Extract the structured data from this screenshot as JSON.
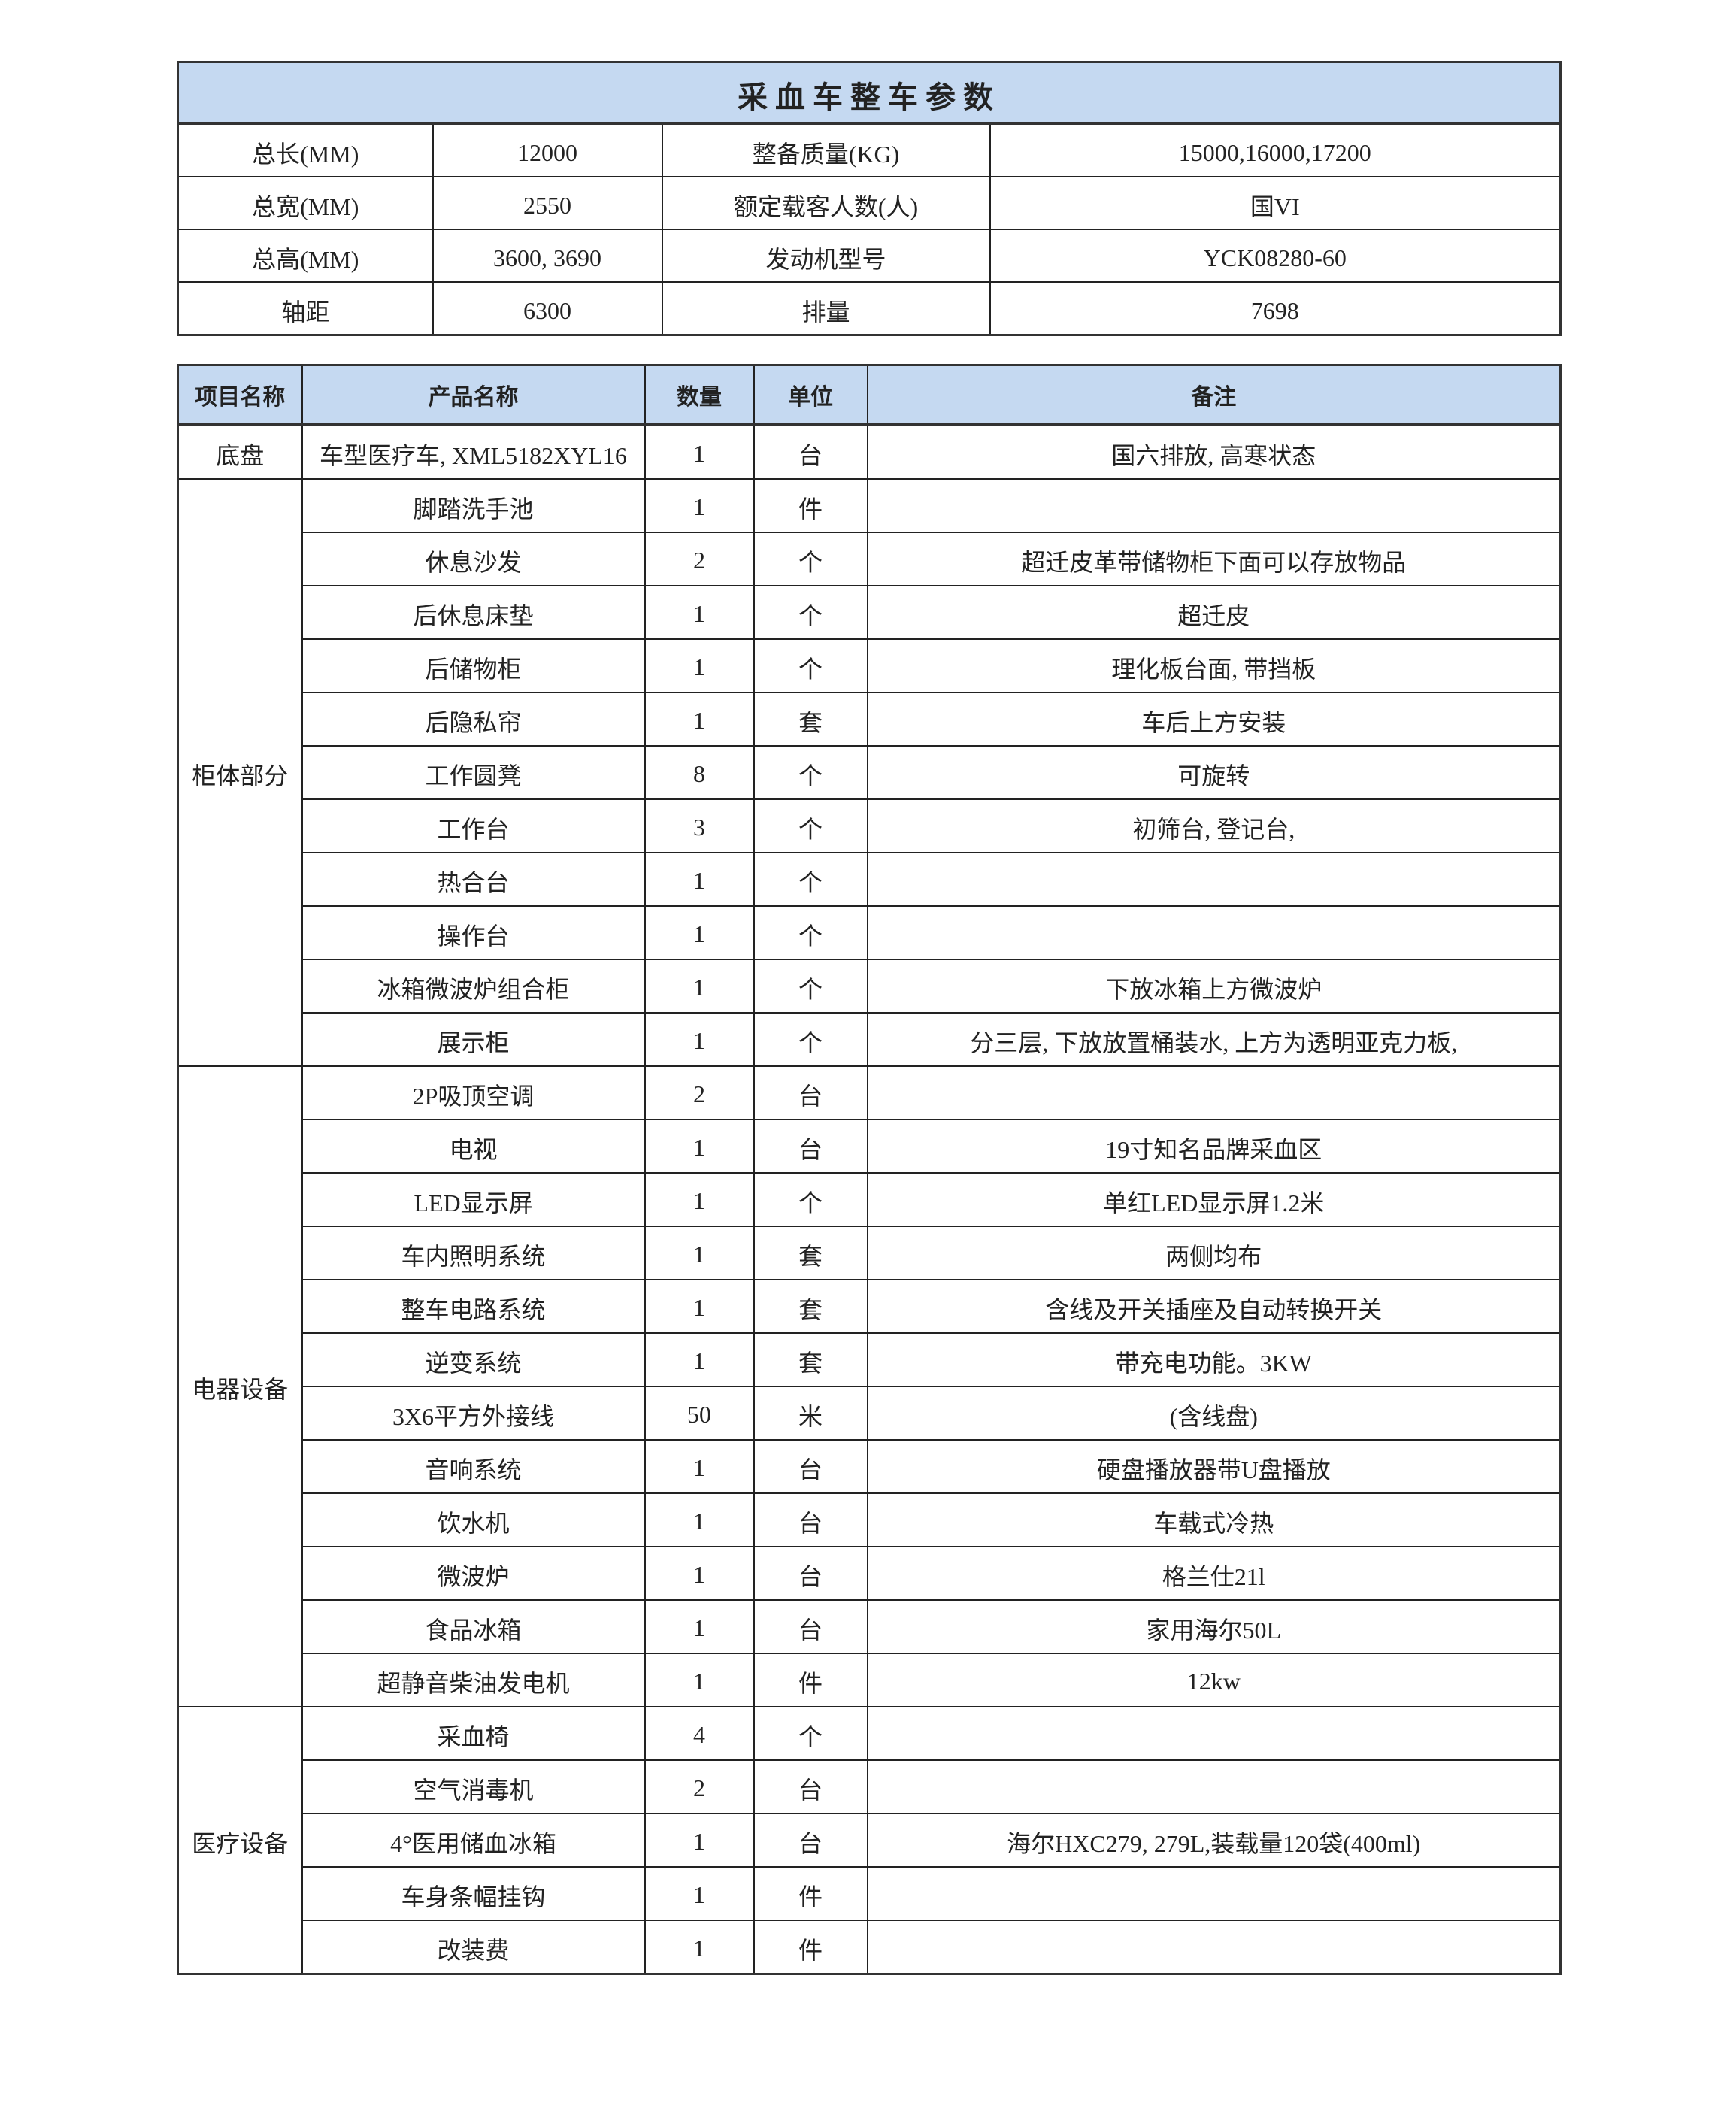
{
  "spec": {
    "title": "采血车整车参数",
    "rows": [
      [
        "总长(MM)",
        "12000",
        "整备质量(KG)",
        "15000,16000,17200"
      ],
      [
        "总宽(MM)",
        "2550",
        "额定载客人数(人)",
        "国VI"
      ],
      [
        "总高(MM)",
        "3600, 3690",
        "发动机型号",
        "YCK08280-60"
      ],
      [
        "轴距",
        "6300",
        "排量",
        "7698"
      ]
    ]
  },
  "items": {
    "headers": [
      "项目名称",
      "产品名称",
      "数量",
      "单位",
      "备注"
    ],
    "groups": [
      {
        "name": "底盘",
        "rows": [
          [
            "车型医疗车, XML5182XYL16",
            "1",
            "台",
            "国六排放, 高寒状态"
          ]
        ]
      },
      {
        "name": "柜体部分",
        "rows": [
          [
            "脚踏洗手池",
            "1",
            "件",
            ""
          ],
          [
            "休息沙发",
            "2",
            "个",
            "超迁皮革带储物柜下面可以存放物品"
          ],
          [
            "后休息床垫",
            "1",
            "个",
            "超迁皮"
          ],
          [
            "后储物柜",
            "1",
            "个",
            "理化板台面, 带挡板"
          ],
          [
            "后隐私帘",
            "1",
            "套",
            "车后上方安装"
          ],
          [
            "工作圆凳",
            "8",
            "个",
            "可旋转"
          ],
          [
            "工作台",
            "3",
            "个",
            "初筛台, 登记台,"
          ],
          [
            "热合台",
            "1",
            "个",
            ""
          ],
          [
            "操作台",
            "1",
            "个",
            ""
          ],
          [
            "冰箱微波炉组合柜",
            "1",
            "个",
            "下放冰箱上方微波炉"
          ],
          [
            "展示柜",
            "1",
            "个",
            "分三层, 下放放置桶装水, 上方为透明亚克力板,"
          ]
        ]
      },
      {
        "name": "电器设备",
        "rows": [
          [
            "2P吸顶空调",
            "2",
            "台",
            ""
          ],
          [
            "电视",
            "1",
            "台",
            "19寸知名品牌采血区"
          ],
          [
            "LED显示屏",
            "1",
            "个",
            "单红LED显示屏1.2米"
          ],
          [
            "车内照明系统",
            "1",
            "套",
            "两侧均布"
          ],
          [
            "整车电路系统",
            "1",
            "套",
            "含线及开关插座及自动转换开关"
          ],
          [
            "逆变系统",
            "1",
            "套",
            "带充电功能。3KW"
          ],
          [
            "3X6平方外接线",
            "50",
            "米",
            "(含线盘)"
          ],
          [
            "音响系统",
            "1",
            "台",
            "硬盘播放器带U盘播放"
          ],
          [
            "饮水机",
            "1",
            "台",
            "车载式冷热"
          ],
          [
            "微波炉",
            "1",
            "台",
            "格兰仕21l"
          ],
          [
            "食品冰箱",
            "1",
            "台",
            "家用海尔50L"
          ],
          [
            "超静音柴油发电机",
            "1",
            "件",
            "12kw"
          ]
        ]
      },
      {
        "name": "医疗设备",
        "rows": [
          [
            "采血椅",
            "4",
            "个",
            ""
          ],
          [
            "空气消毒机",
            "2",
            "台",
            ""
          ],
          [
            "4°医用储血冰箱",
            "1",
            "台",
            "海尔HXC279, 279L,装载量120袋(400ml)"
          ],
          [
            "车身条幅挂钩",
            "1",
            "件",
            ""
          ],
          [
            "改装费",
            "1",
            "件",
            ""
          ]
        ]
      }
    ]
  }
}
